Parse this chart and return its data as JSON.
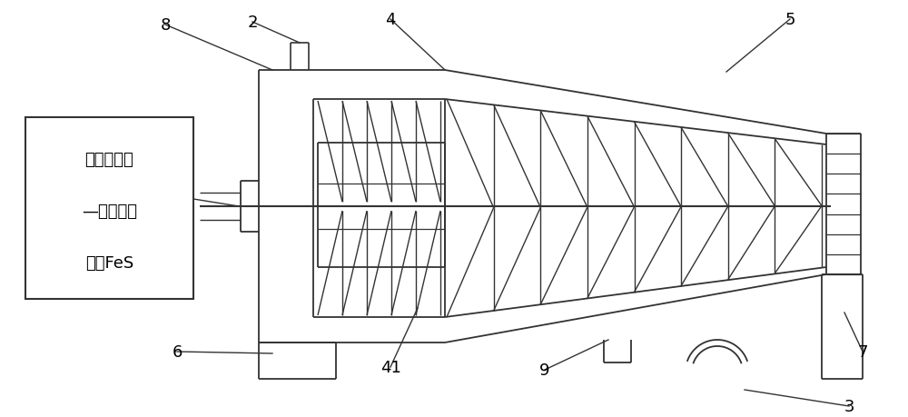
{
  "bg_color": "#ffffff",
  "line_color": "#333333",
  "label_color": "#000000",
  "box_text_lines": [
    "微生物还原",
    "—电化学法",
    "制备FeS"
  ],
  "figsize": [
    10.0,
    4.6
  ],
  "dpi": 100
}
